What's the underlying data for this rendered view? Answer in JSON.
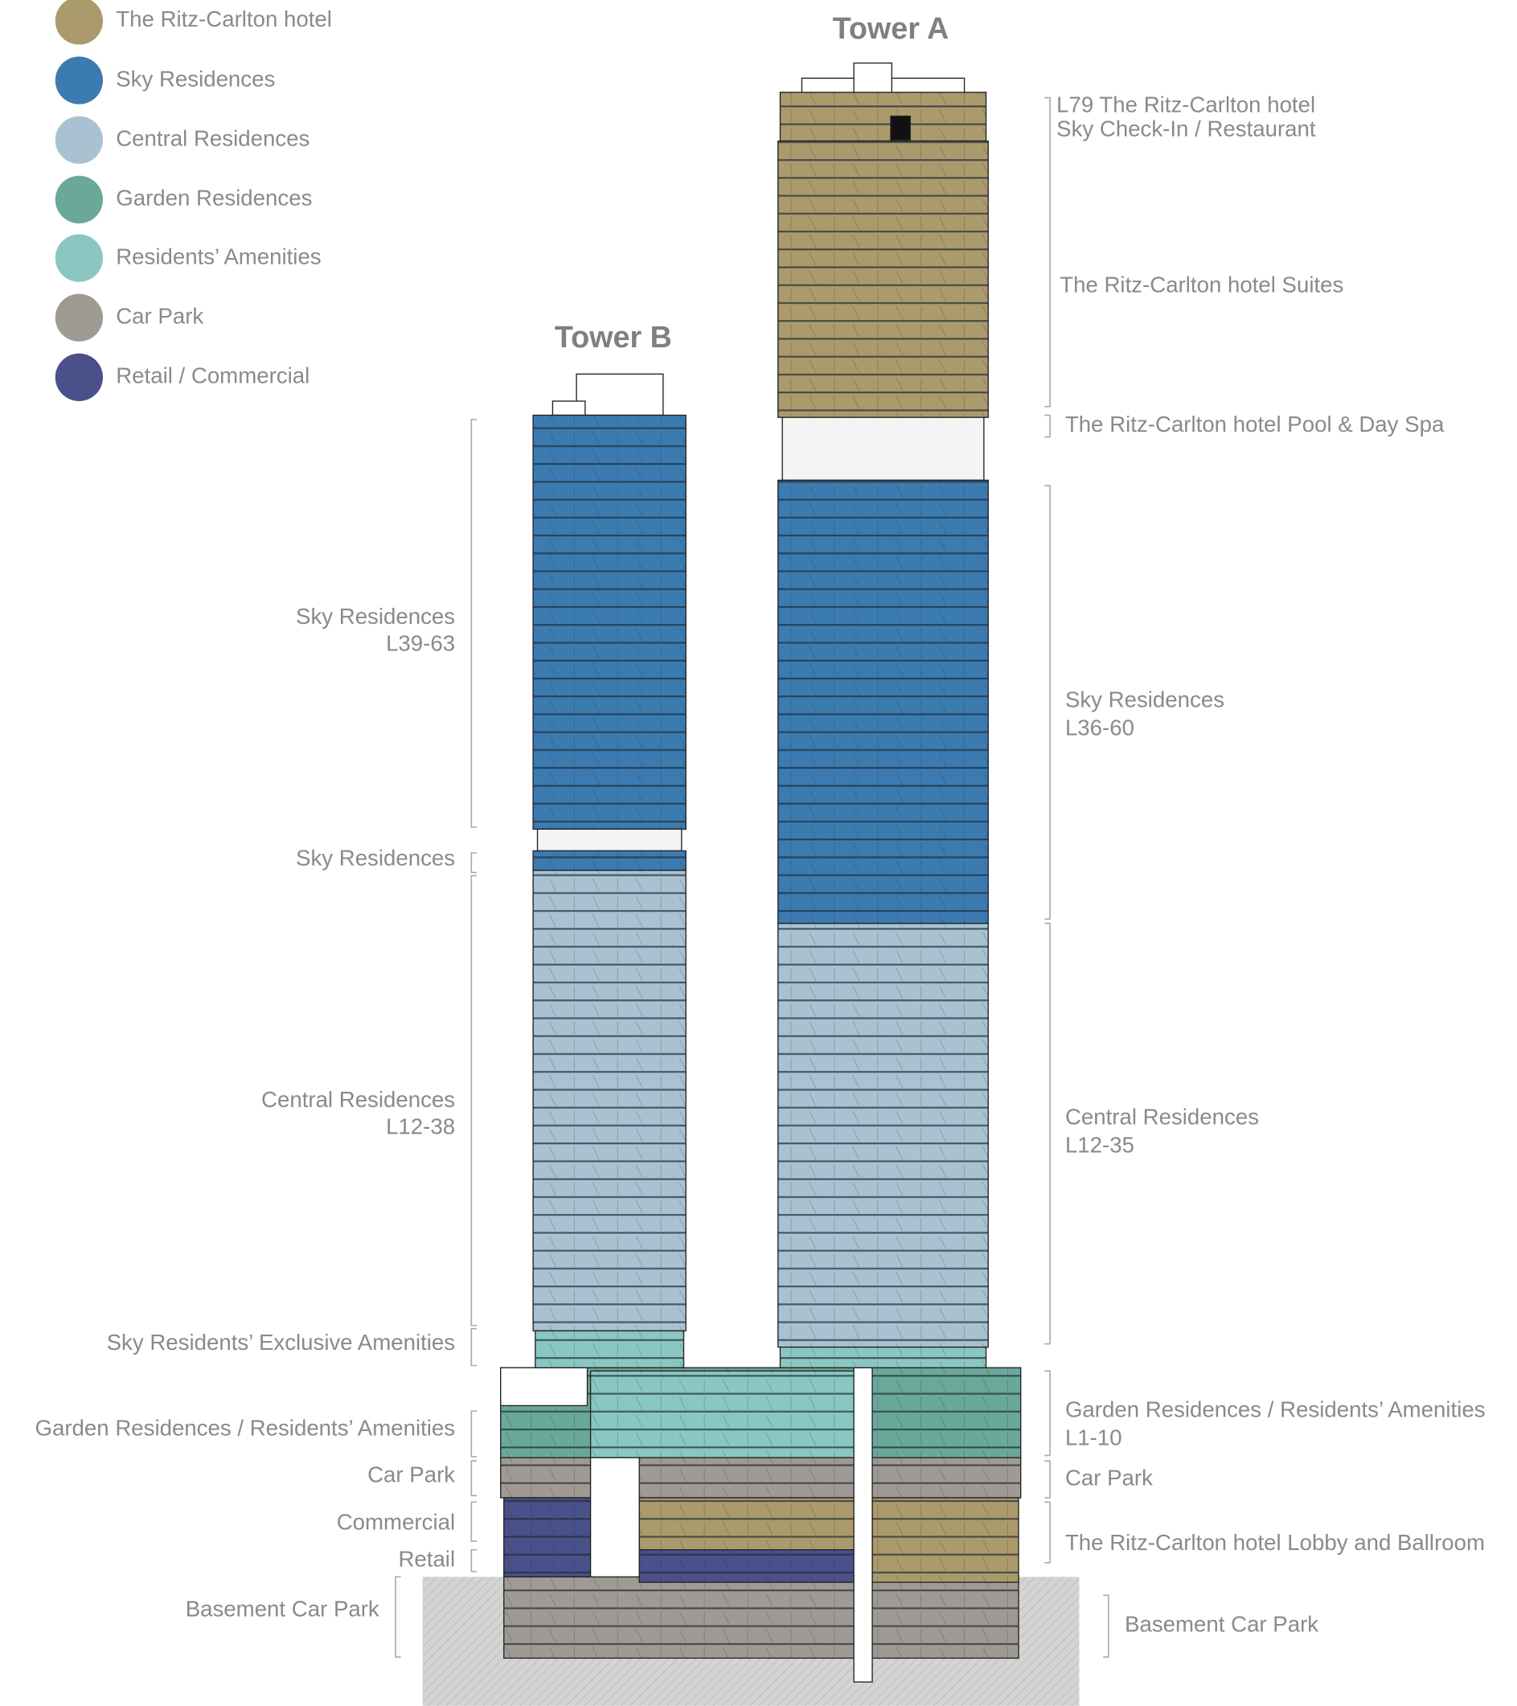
{
  "legend": [
    {
      "label": "The Ritz-Carlton hotel",
      "color": "#ab9a6c"
    },
    {
      "label": "Sky Residences",
      "color": "#3c7bb0"
    },
    {
      "label": "Central Residences",
      "color": "#a9c2d2"
    },
    {
      "label": "Garden Residences",
      "color": "#6aa89a"
    },
    {
      "label": "Residents’ Amenities",
      "color": "#8ac7c2"
    },
    {
      "label": "Car Park",
      "color": "#a09a94"
    },
    {
      "label": "Retail / Commercial",
      "color": "#4a5089"
    }
  ],
  "towers": [
    {
      "title": "Tower A"
    },
    {
      "title": "Tower B"
    }
  ],
  "labels_left": [
    {
      "lines": [
        "Sky Residences",
        "L39-63"
      ]
    },
    {
      "lines": [
        "Sky Residences"
      ]
    },
    {
      "lines": [
        "Central Residences",
        "L12-38"
      ]
    },
    {
      "lines": [
        "Sky Residents’ Exclusive Amenities"
      ]
    },
    {
      "lines": [
        "Garden Residences / Residents’ Amenities"
      ]
    },
    {
      "lines": [
        "Car Park"
      ]
    },
    {
      "lines": [
        "Commercial"
      ]
    },
    {
      "lines": [
        "Retail"
      ]
    },
    {
      "lines": [
        "Basement Car Park"
      ]
    }
  ],
  "labels_right": [
    {
      "lines": [
        "L79 The Ritz-Carlton hotel",
        "Sky Check-In / Restaurant"
      ]
    },
    {
      "lines": [
        "The Ritz-Carlton hotel Suites"
      ]
    },
    {
      "lines": [
        "The Ritz-Carlton hotel Pool & Day Spa"
      ]
    },
    {
      "lines": [
        "Sky Residences",
        "L36-60"
      ]
    },
    {
      "lines": [
        "Central Residences",
        "L12-35"
      ]
    },
    {
      "lines": [
        "Garden Residences / Residents’ Amenities",
        "L1-10"
      ]
    },
    {
      "lines": [
        "Car Park"
      ]
    },
    {
      "lines": [
        "The Ritz-Carlton hotel Lobby and Ballroom"
      ]
    },
    {
      "lines": [
        "Basement Car Park"
      ]
    }
  ]
}
